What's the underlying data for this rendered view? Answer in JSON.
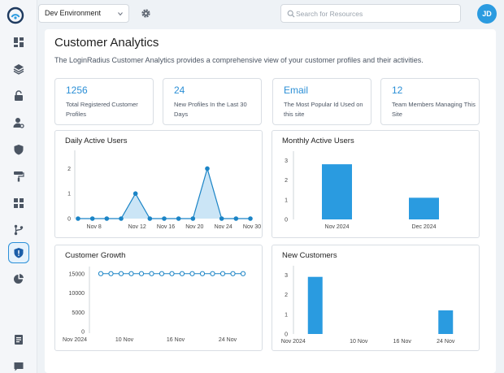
{
  "topbar": {
    "environment": "Dev Environment",
    "search_placeholder": "Search for Resources",
    "avatar_initials": "JD"
  },
  "sidebar": {
    "items": [
      {
        "icon": "dashboard-icon"
      },
      {
        "icon": "layers-icon"
      },
      {
        "icon": "lock-icon"
      },
      {
        "icon": "user-settings-icon"
      },
      {
        "icon": "shield-icon"
      },
      {
        "icon": "paint-roller-icon"
      },
      {
        "icon": "apps-icon"
      },
      {
        "icon": "branch-icon"
      },
      {
        "icon": "shield-alert-icon",
        "active": true
      },
      {
        "icon": "pie-chart-icon"
      },
      {
        "icon": "document-icon"
      },
      {
        "icon": "chat-icon"
      }
    ]
  },
  "page": {
    "title": "Customer Analytics",
    "description": "The LoginRadius Customer Analytics provides a comprehensive view of your customer profiles and their activities."
  },
  "stats": [
    {
      "value": "1256",
      "label": "Total Registered Customer Profiles"
    },
    {
      "value": "24",
      "label": "New Profiles In the Last 30 Days"
    },
    {
      "value": "Email",
      "label": "The Most Popular Id Used on this site"
    },
    {
      "value": "12",
      "label": "Team Members Managing This Site"
    }
  ],
  "colors": {
    "accent": "#2b8fd6",
    "bar": "#2a9be0",
    "line": "#1b84c6",
    "area": "#c5e2f5"
  },
  "chart_data": [
    {
      "title": "Daily Active Users",
      "type": "area",
      "x": [
        "Nov 7",
        "Nov 8",
        "Nov 10",
        "Nov 11",
        "Nov 12",
        "Nov 14",
        "Nov 16",
        "Nov 18",
        "Nov 20",
        "Nov 22",
        "Nov 24",
        "Nov 28",
        "Nov 30"
      ],
      "y": [
        0,
        0,
        0,
        0,
        1,
        0,
        0,
        0,
        0,
        2,
        0,
        0,
        0
      ],
      "xticks": [
        "Nov 8",
        "Nov 12",
        "Nov 16",
        "Nov 20",
        "Nov 24",
        "Nov 30"
      ],
      "yticks": [
        "0",
        "1",
        "2"
      ],
      "ylim": [
        0,
        2.6
      ]
    },
    {
      "title": "Monthly Active Users",
      "type": "bar",
      "categories": [
        "Nov 2024",
        "Dec 2024"
      ],
      "values": [
        2.8,
        1.1
      ],
      "yticks": [
        "0",
        "1",
        "2",
        "3"
      ],
      "ylim": [
        0,
        3.3
      ]
    },
    {
      "title": "Customer Growth",
      "type": "line",
      "x": [
        "Nov 4",
        "Nov 5",
        "Nov 6",
        "Nov 7",
        "Nov 8",
        "Nov 9",
        "Nov 10",
        "Nov 11",
        "Nov 12",
        "Nov 13",
        "Nov 14",
        "Nov 15",
        "Nov 16",
        "Nov 17",
        "Nov 18"
      ],
      "y": [
        15000,
        15000,
        15000,
        15000,
        15000,
        15000,
        15000,
        15000,
        15000,
        15000,
        15000,
        15000,
        15000,
        15000,
        15000
      ],
      "xticks": [
        "Nov 2024",
        "10 Nov",
        "16 Nov",
        "24 Nov"
      ],
      "yticks": [
        "0",
        "5000",
        "10000",
        "15000"
      ],
      "ylim": [
        0,
        16000
      ]
    },
    {
      "title": "New Customers",
      "type": "bar",
      "categories": [
        "Nov 2024",
        "10 Nov",
        "16 Nov",
        "24 Nov"
      ],
      "values": [
        2.9,
        0,
        0,
        1.2
      ],
      "xticks": [
        "Nov 2024",
        "10 Nov",
        "16 Nov",
        "24 Nov"
      ],
      "yticks": [
        "0",
        "1",
        "2",
        "3"
      ],
      "ylim": [
        0,
        3.3
      ]
    }
  ]
}
